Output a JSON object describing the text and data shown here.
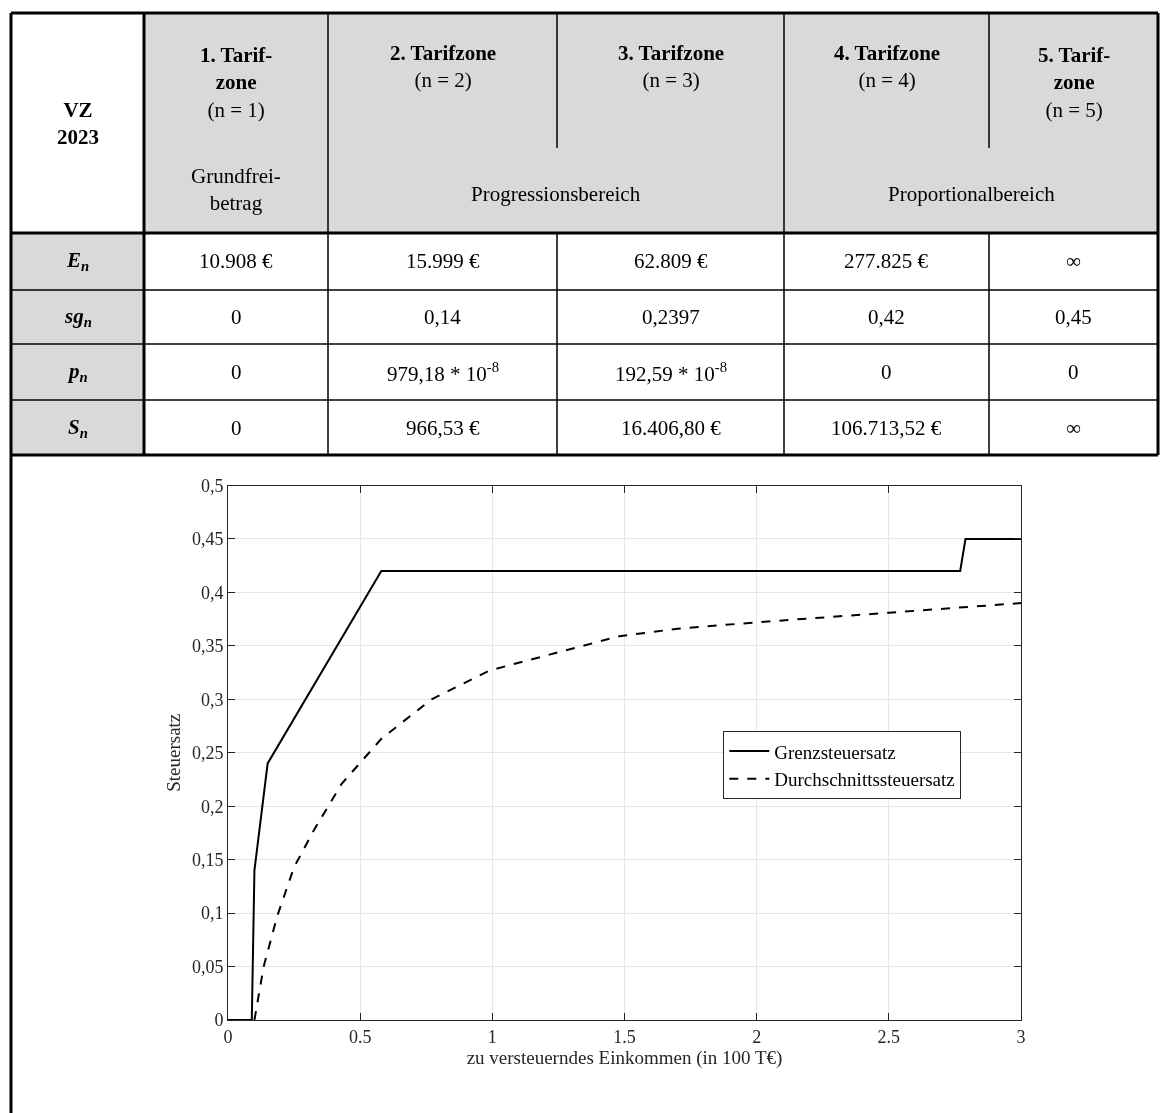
{
  "chart_data": [
    {
      "type": "other",
      "annotations": [
        "VZ\n2023",
        "1. Tarif-\nzone\n(n = 1)",
        "2. Tarifzone\n(n = 2)",
        "3. Tarifzone\n(n = 3)",
        "4. Tarifzone\n(n = 4)",
        "5. Tarif-\nzone\n(n = 5)",
        "Grundfrei-\nbetrag",
        "Progressionsbereich",
        "Proportionalbereich",
        "E$_{n}$",
        "10.908 €",
        "15.999 €",
        "62.809 €",
        "277.825 €",
        "∞",
        "sg$_{n}$",
        "0",
        "0,14",
        "0,2397",
        "0,42",
        "0,45",
        "p$_{n}$",
        "0",
        "979,18 * 10$^{-8}$",
        "192,59 * 10$^{-8}$",
        "0",
        "0",
        "S$_{n}$",
        "0",
        "966,53 €",
        "16.406,80 €",
        "106.713,52 €",
        "∞"
      ]
    },
    {
      "type": "line",
      "xlabel": "zu versteuerndes Einkommen (in 100 T€)",
      "ylabel": "Steuersatz",
      "xlim": [
        0,
        3
      ],
      "xticks": [
        0,
        0.5,
        1,
        1.5,
        2,
        2.5,
        3
      ],
      "ylim": [
        0,
        0.5
      ],
      "yticks": [
        0,
        {
          "value": 0.05,
          "label": "0,05"
        },
        {
          "value": 0.1,
          "label": "0,1"
        },
        {
          "value": 0.15,
          "label": "0,15"
        },
        {
          "value": 0.2,
          "label": "0,2"
        },
        {
          "value": 0.25,
          "label": "0,25"
        },
        {
          "value": 0.3,
          "label": "0,3"
        },
        {
          "value": 0.35,
          "label": "0,35"
        },
        {
          "value": 0.4,
          "label": "0,4"
        },
        {
          "value": 0.45,
          "label": "0,45"
        },
        {
          "value": 0.5,
          "label": "0,5"
        }
      ],
      "grid": true,
      "legend": "right",
      "series": [
        {
          "name": "Grenzsteuersatz",
          "color": "#000000",
          "line_style": "solid",
          "x": [
            0,
            0.09,
            0.1,
            0.15,
            0.58,
            2.77,
            2.79,
            3
          ],
          "values": [
            0,
            0,
            0.14,
            0.24,
            0.42,
            0.42,
            0.45,
            0.45
          ]
        },
        {
          "name": "Durchschnittssteuersatz",
          "color": "#000000",
          "line_style": "dashed",
          "x": [
            0.1,
            0.135,
            0.186,
            0.25,
            0.326,
            0.43,
            0.58,
            0.77,
            0.99,
            1.48,
            1.7,
            2.0,
            2.5,
            3.0
          ],
          "values": [
            0,
            0.05,
            0.097,
            0.143,
            0.178,
            0.221,
            0.263,
            0.3,
            0.327,
            0.359,
            0.366,
            0.372,
            0.381,
            0.39
          ]
        }
      ]
    }
  ]
}
